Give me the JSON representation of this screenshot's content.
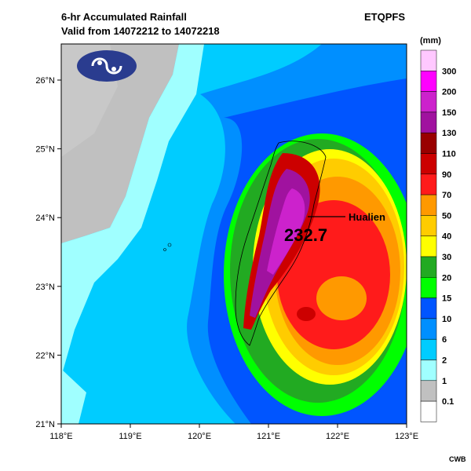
{
  "title_line1": "6-hr Accumulated Rainfall",
  "title_line2": "Valid from 14072212 to 14072218",
  "model": "ETQPFS",
  "unit": "(mm)",
  "credit": "CWB",
  "max_value_label": "232.7",
  "place_label": "Hualien",
  "latitudes": [
    "26°N",
    "25°N",
    "24°N",
    "23°N",
    "22°N",
    "21°N"
  ],
  "longitudes": [
    "118°E",
    "119°E",
    "120°E",
    "121°E",
    "122°E",
    "123°E"
  ],
  "legend": [
    {
      "label": "300",
      "color": "#ffc8ff"
    },
    {
      "label": "200",
      "color": "#ff00ff"
    },
    {
      "label": "150",
      "color": "#cc22cc"
    },
    {
      "label": "130",
      "color": "#a0129f"
    },
    {
      "label": "110",
      "color": "#990000"
    },
    {
      "label": "90",
      "color": "#cc0000"
    },
    {
      "label": "70",
      "color": "#ff1b1b"
    },
    {
      "label": "50",
      "color": "#ff9900"
    },
    {
      "label": "40",
      "color": "#ffcc00"
    },
    {
      "label": "30",
      "color": "#ffff00"
    },
    {
      "label": "20",
      "color": "#22aa22"
    },
    {
      "label": "15",
      "color": "#00ff00"
    },
    {
      "label": "10",
      "color": "#0055ff"
    },
    {
      "label": "6",
      "color": "#008fff"
    },
    {
      "label": "2",
      "color": "#00ccff"
    },
    {
      "label": "1",
      "color": "#a0ffff"
    },
    {
      "label": "0.1",
      "color": "#c0c0c0"
    },
    {
      "label": "",
      "color": "#ffffff"
    }
  ],
  "colors": {
    "ocean_deep": "#2288ee",
    "ocean_mid": "#00b6f0",
    "ocean_light": "#a8f4f4",
    "land_gray": "#c0c0c0"
  }
}
